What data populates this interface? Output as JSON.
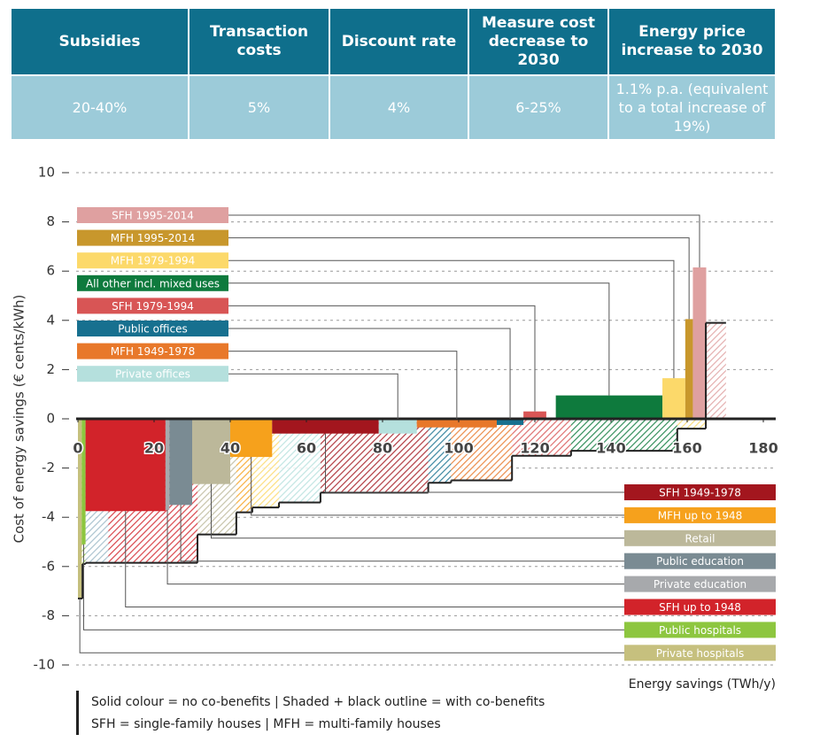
{
  "table": {
    "header": [
      "Subsidies",
      "Transaction costs",
      "Discount rate",
      "Measure cost decrease to 2030",
      "Energy price increase to 2030"
    ],
    "rows": [
      [
        "20-40%",
        "5%",
        "4%",
        "6-25%",
        "1.1% p.a. (equivalent to a total increase of 19%)"
      ]
    ]
  },
  "chart_data": {
    "type": "mac",
    "ylabel": "Cost of energy savings (€ cents/kWh)",
    "xlabel": "Energy savings (TWh/y)",
    "xlim": [
      0,
      180
    ],
    "xticks": [
      0,
      20,
      40,
      60,
      80,
      100,
      120,
      140,
      160,
      180
    ],
    "ylim": [
      -10,
      10
    ],
    "yticks": [
      -10,
      -8,
      -6,
      -4,
      -2,
      0,
      2,
      4,
      6,
      8,
      10
    ],
    "grid": true,
    "series": [
      {
        "name": "Private hospitals",
        "color": "#c6c07e",
        "x": [
          0,
          1
        ],
        "value": -7.3
      },
      {
        "name": "Public hospitals",
        "color": "#8dc63f",
        "x": [
          1,
          2
        ],
        "value": -5.1
      },
      {
        "name": "SFH up to 1948",
        "color": "#d2232a",
        "x": [
          2,
          23
        ],
        "value": -3.75
      },
      {
        "name": "Private education",
        "color": "#a7a9ac",
        "x": [
          23,
          24
        ],
        "value": -3.7
      },
      {
        "name": "Public education",
        "color": "#7a8b93",
        "x": [
          24,
          30
        ],
        "value": -3.5
      },
      {
        "name": "Retail",
        "color": "#bcb89a",
        "x": [
          30,
          40
        ],
        "value": -2.65
      },
      {
        "name": "MFH up to 1948",
        "color": "#f6a11c",
        "x": [
          40,
          51
        ],
        "value": -1.55
      },
      {
        "name": "SFH 1949-1978",
        "color": "#a3161e",
        "x": [
          51,
          79
        ],
        "value": -0.6
      },
      {
        "name": "Private offices",
        "color": "#b5e0dd",
        "x": [
          79,
          89
        ],
        "value": -0.6
      },
      {
        "name": "MFH 1949-1978",
        "color": "#e8782a",
        "x": [
          89,
          110
        ],
        "value": -0.35
      },
      {
        "name": "Public offices",
        "color": "#17708f",
        "x": [
          110,
          117
        ],
        "value": -0.25
      },
      {
        "name": "SFH 1979-1994",
        "color": "#d85555",
        "x": [
          117,
          123
        ],
        "value": 0.3
      },
      {
        "name": "All other incl. mixed uses",
        "color": "#0e7a3d",
        "x": [
          125.5,
          153.5
        ],
        "value": 0.95
      },
      {
        "name": "MFH 1979-1994",
        "color": "#fcd96a",
        "x": [
          153.5,
          159.5
        ],
        "value": 1.65
      },
      {
        "name": "MFH 1995-2014",
        "color": "#c8972c",
        "x": [
          159.5,
          161.5
        ],
        "value": 4.05
      },
      {
        "name": "SFH 1995-2014",
        "color": "#dfa0a0",
        "x": [
          161.5,
          165
        ],
        "value": 6.15
      }
    ],
    "co_benefits": [
      {
        "color": "#c6c07e",
        "x": [
          0,
          1.2
        ],
        "value": -7.3
      },
      {
        "color": "#8dc63f",
        "x": [
          1.2,
          2
        ],
        "value": -5.9
      },
      {
        "color": "#9bb8c6",
        "x": [
          2,
          8
        ],
        "value": -5.85
      },
      {
        "color": "#d2232a",
        "x": [
          8,
          31.4
        ],
        "value": -5.85
      },
      {
        "color": "#bcb89a",
        "x": [
          31.4,
          41.6
        ],
        "value": -4.7
      },
      {
        "color": "#f6a11c",
        "x": [
          41.6,
          45.8
        ],
        "value": -3.8
      },
      {
        "color": "#fcd96a",
        "x": [
          45.8,
          52.8
        ],
        "value": -3.6
      },
      {
        "color": "#b5e0dd",
        "x": [
          52.8,
          63.7
        ],
        "value": -3.4
      },
      {
        "color": "#a3161e",
        "x": [
          63.7,
          92
        ],
        "value": -3.0
      },
      {
        "color": "#17708f",
        "x": [
          92,
          98
        ],
        "value": -2.6
      },
      {
        "color": "#e8782a",
        "x": [
          98,
          114
        ],
        "value": -2.5
      },
      {
        "color": "#d85555",
        "x": [
          114,
          129.5
        ],
        "value": -1.5
      },
      {
        "color": "#0e7a3d",
        "x": [
          129.5,
          157.4
        ],
        "value": -1.3
      },
      {
        "color": "#fcd96a",
        "x": [
          157.4,
          164.9
        ],
        "value": -0.4
      },
      {
        "color": "#dfa0a0",
        "x": [
          164.9,
          170.2
        ],
        "value": 3.9
      }
    ]
  },
  "footnotes": [
    "Solid colour = no co-benefits  |  Shaded + black outline = with co-benefits",
    "SFH = single-family houses  |  MFH = multi-family houses"
  ]
}
